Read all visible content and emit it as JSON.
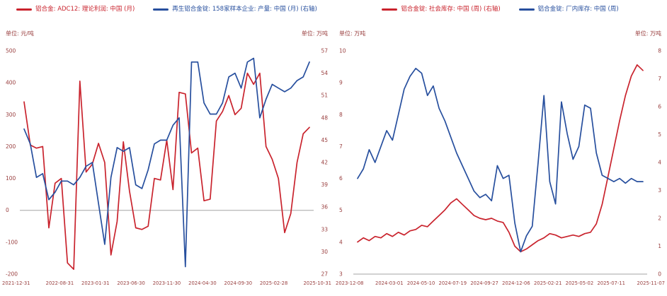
{
  "theme": {
    "background": "#ffffff",
    "red": "#c9232d",
    "blue": "#274f9e",
    "axis_text": "#9a4040",
    "baseline": "#a6a6a6"
  },
  "chart_data": [
    {
      "type": "line",
      "title": "",
      "legend_position": "top",
      "grid": false,
      "legend": [
        {
          "label": "铝合金: ADC12: 理论利润: 中国 (月)",
          "color": "#c9232d"
        },
        {
          "label": "再生铝合金锭: 158家样本企业: 产量: 中国 (月) (右轴)",
          "color": "#274f9e"
        }
      ],
      "left_axis": {
        "unit": "单位: 元/吨",
        "min": -200,
        "max": 500,
        "ticks": [
          500,
          400,
          300,
          200,
          100,
          0,
          -100,
          -200
        ]
      },
      "right_axis": {
        "unit": "单位: 万吨",
        "min": 27,
        "max": 57,
        "ticks": [
          57,
          54,
          51,
          48,
          45,
          42,
          39,
          36,
          33,
          30,
          27
        ]
      },
      "x_ticks": [
        "2021-12-31",
        "2022-08-31",
        "2023-01-31",
        "2023-06-30",
        "2023-11-30",
        "2024-04-30",
        "2024-09-30",
        "2025-02-28",
        "2025-10-31"
      ],
      "baseline_value": 0,
      "series": [
        {
          "name": "铝合金: ADC12: 理论利润: 中国 (月)",
          "axis": "left",
          "color": "#c9232d",
          "values": [
            340,
            205,
            195,
            200,
            -55,
            85,
            100,
            -165,
            -185,
            405,
            120,
            145,
            210,
            150,
            -140,
            -35,
            215,
            60,
            -55,
            -60,
            -50,
            100,
            95,
            220,
            65,
            370,
            365,
            180,
            195,
            30,
            35,
            280,
            310,
            360,
            300,
            320,
            430,
            395,
            430,
            200,
            160,
            100,
            -70,
            -10,
            150,
            240,
            260
          ]
        },
        {
          "name": "再生铝合金锭: 158家样本企业: 产量: 中国 (月) (右轴)",
          "axis": "right",
          "color": "#274f9e",
          "values": [
            46.5,
            44.5,
            40,
            40.5,
            37,
            38,
            39.5,
            39.5,
            39,
            40,
            41.5,
            42,
            36.5,
            31,
            40,
            44,
            43.5,
            44,
            39,
            38.5,
            41,
            44.5,
            45,
            45,
            47,
            48,
            28,
            55.5,
            55.5,
            50,
            48.5,
            48.5,
            50,
            53.5,
            54,
            52,
            55.5,
            56,
            48,
            50.5,
            52.5,
            52,
            51.5,
            52,
            53,
            53.5,
            55.5
          ]
        }
      ]
    },
    {
      "type": "line",
      "title": "",
      "legend_position": "top",
      "grid": false,
      "legend": [
        {
          "label": "铝合金锭: 社会库存: 中国 (周) (右轴)",
          "color": "#c9232d"
        },
        {
          "label": "铝合金锭: 厂内库存: 中国 (周)",
          "color": "#274f9e"
        }
      ],
      "left_axis": {
        "unit": "单位: 万吨",
        "min": 3,
        "max": 10,
        "ticks": [
          10,
          9,
          8,
          7,
          6,
          5,
          4,
          3
        ]
      },
      "right_axis": {
        "unit": "单位: 万吨",
        "min": 0,
        "max": 8,
        "ticks": [
          8,
          7,
          6,
          5,
          4,
          3,
          2,
          1,
          0
        ]
      },
      "x_ticks": [
        "2023-12-08",
        "2024-03-01",
        "2024-05-10",
        "2024-07-19",
        "2024-09-27",
        "2024-12-06",
        "2025-02-21",
        "2025-05-02",
        "2025-07-11",
        "2025-11-07"
      ],
      "baseline_value": 3,
      "series": [
        {
          "name": "铝合金锭: 社会库存: 中国 (周) (右轴)",
          "axis": "right",
          "color": "#c9232d",
          "values": [
            1.15,
            1.3,
            1.2,
            1.35,
            1.3,
            1.45,
            1.35,
            1.5,
            1.4,
            1.55,
            1.6,
            1.75,
            1.7,
            1.9,
            2.1,
            2.3,
            2.55,
            2.7,
            2.5,
            2.3,
            2.1,
            2.0,
            1.95,
            2.0,
            1.9,
            1.85,
            1.5,
            1.0,
            0.8,
            0.9,
            1.05,
            1.2,
            1.3,
            1.45,
            1.4,
            1.3,
            1.35,
            1.4,
            1.35,
            1.45,
            1.5,
            1.8,
            2.5,
            3.5,
            4.5,
            5.5,
            6.4,
            7.1,
            7.5,
            7.3
          ]
        },
        {
          "name": "铝合金锭: 厂内库存: 中国 (周)",
          "axis": "left",
          "color": "#274f9e",
          "values": [
            6.0,
            6.3,
            6.9,
            6.5,
            7.0,
            7.5,
            7.2,
            8.0,
            8.8,
            9.2,
            9.45,
            9.3,
            8.6,
            8.9,
            8.2,
            7.8,
            7.3,
            6.8,
            6.4,
            6.0,
            5.6,
            5.4,
            5.5,
            5.3,
            6.4,
            6.0,
            6.1,
            4.6,
            3.7,
            4.2,
            4.5,
            6.5,
            8.6,
            5.9,
            5.2,
            8.4,
            7.4,
            6.6,
            7.0,
            8.3,
            8.2,
            6.8,
            6.1,
            6.0,
            5.9,
            6.0,
            5.85,
            6.0,
            5.9,
            5.9
          ]
        }
      ]
    }
  ]
}
